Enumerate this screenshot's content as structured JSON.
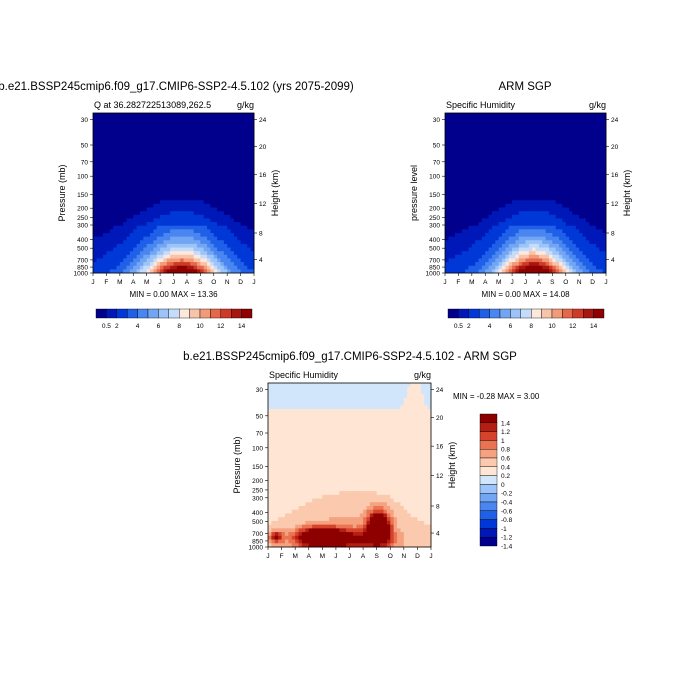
{
  "chart_data": [
    {
      "type": "heatmap",
      "title": "b.e21.BSSP245cmip6.f09_g17.CMIP6-SSP2-4.5.102 (yrs 2075-2099)",
      "subtitle_left": "Q at 36.282722513089,262.5",
      "subtitle_right": "g/kg",
      "ylabel": "Pressure (mb)",
      "y2label": "Height (km)",
      "x_ticks": [
        "J",
        "F",
        "M",
        "A",
        "M",
        "J",
        "J",
        "A",
        "S",
        "O",
        "N",
        "D",
        "J"
      ],
      "y_ticks": [
        "30",
        "50",
        "70",
        "100",
        "150",
        "200",
        "250",
        "300",
        "400",
        "500",
        "700",
        "850",
        "1000"
      ],
      "y2_ticks": [
        "24",
        "20",
        "16",
        "12",
        "8",
        "4"
      ],
      "stats": "MIN =   0.00 MAX =  13.36",
      "min": 0.0,
      "max": 13.36,
      "colorbar_labels": [
        "0.5",
        "2",
        "4",
        "6",
        "8",
        "10",
        "12",
        "14"
      ]
    },
    {
      "type": "heatmap",
      "title": "ARM SGP",
      "subtitle_left": "Specific Humidity",
      "subtitle_right": "g/kg",
      "ylabel": "pressure level",
      "y2label": "Height (km)",
      "x_ticks": [
        "J",
        "F",
        "M",
        "A",
        "M",
        "J",
        "J",
        "A",
        "S",
        "O",
        "N",
        "D",
        "J"
      ],
      "y_ticks": [
        "30",
        "50",
        "70",
        "100",
        "150",
        "200",
        "250",
        "300",
        "400",
        "500",
        "700",
        "850",
        "1000"
      ],
      "y2_ticks": [
        "24",
        "20",
        "16",
        "12",
        "8",
        "4"
      ],
      "stats": "MIN =   0.00 MAX =  14.08",
      "min": 0.0,
      "max": 14.08,
      "colorbar_labels": [
        "0.5",
        "2",
        "4",
        "6",
        "8",
        "10",
        "12",
        "14"
      ]
    },
    {
      "type": "heatmap",
      "title": "b.e21.BSSP245cmip6.f09_g17.CMIP6-SSP2-4.5.102 - ARM SGP",
      "subtitle_left": "Specific Humidity",
      "subtitle_right": "g/kg",
      "ylabel": "Pressure (mb)",
      "y2label": "Height (km)",
      "x_ticks": [
        "J",
        "F",
        "M",
        "A",
        "M",
        "J",
        "J",
        "A",
        "S",
        "O",
        "N",
        "D",
        "J"
      ],
      "y_ticks": [
        "30",
        "50",
        "70",
        "100",
        "150",
        "200",
        "250",
        "300",
        "400",
        "500",
        "700",
        "850",
        "1000"
      ],
      "y2_ticks": [
        "24",
        "20",
        "16",
        "12",
        "8",
        "4"
      ],
      "stats": "MIN =  -0.28 MAX =   3.00",
      "min": -0.28,
      "max": 3.0,
      "colorbar_labels": [
        "1.4",
        "1.2",
        "1",
        "0.8",
        "0.6",
        "0.4",
        "0.2",
        "0",
        "-0.2",
        "-0.4",
        "-0.6",
        "-0.8",
        "-1",
        "-1.2",
        "-1.4"
      ]
    }
  ],
  "colors": {
    "blue_dark": "#00008c",
    "red_dark": "#8c0000",
    "neutral": "#ffffff"
  }
}
